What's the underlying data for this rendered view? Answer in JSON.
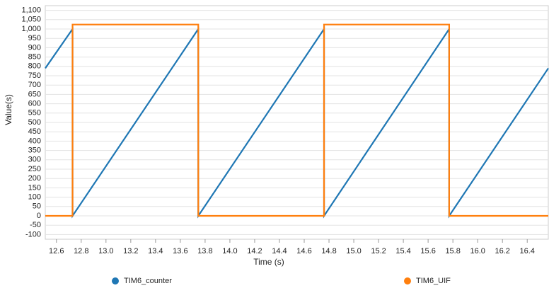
{
  "chart_data": {
    "type": "line",
    "x_label": "Time (s)",
    "y_label": "Value(s)",
    "xlim": [
      12.51,
      16.57
    ],
    "ylim": [
      -125,
      1125
    ],
    "xticks": [
      12.6,
      12.8,
      {
        "value": 13,
        "label": "13.0"
      },
      13.2,
      13.4,
      13.6,
      13.8,
      {
        "value": 14,
        "label": "14.0"
      },
      14.2,
      14.4,
      14.6,
      14.8,
      {
        "value": 15,
        "label": "15.0"
      },
      15.2,
      15.4,
      15.6,
      15.8,
      {
        "value": 16,
        "label": "16.0"
      },
      16.2,
      16.4
    ],
    "yticks": [
      -100,
      -50,
      0,
      50,
      100,
      150,
      200,
      250,
      300,
      350,
      400,
      450,
      500,
      550,
      600,
      650,
      700,
      750,
      800,
      850,
      900,
      950,
      {
        "value": 1000,
        "label": "1,000"
      },
      {
        "value": 1050,
        "label": "1,050"
      },
      {
        "value": 1100,
        "label": "1,100"
      }
    ],
    "grid": true,
    "series": [
      {
        "name": "TIM6_counter",
        "color": "#1f77b4",
        "x": [
          12.51,
          12.73,
          12.73,
          13.745,
          13.745,
          14.76,
          14.76,
          15.77,
          15.77,
          16.57
        ],
        "values": [
          790,
          1000,
          0,
          1000,
          0,
          1000,
          0,
          1000,
          0,
          790
        ]
      },
      {
        "name": "TIM6_UIF",
        "color": "#ff7f0e",
        "x": [
          12.51,
          12.73,
          12.73,
          13.745,
          13.745,
          14.76,
          14.76,
          15.77,
          15.77,
          16.57
        ],
        "values": [
          0,
          0,
          1024,
          1024,
          0,
          0,
          1024,
          1024,
          0,
          0
        ]
      }
    ]
  }
}
